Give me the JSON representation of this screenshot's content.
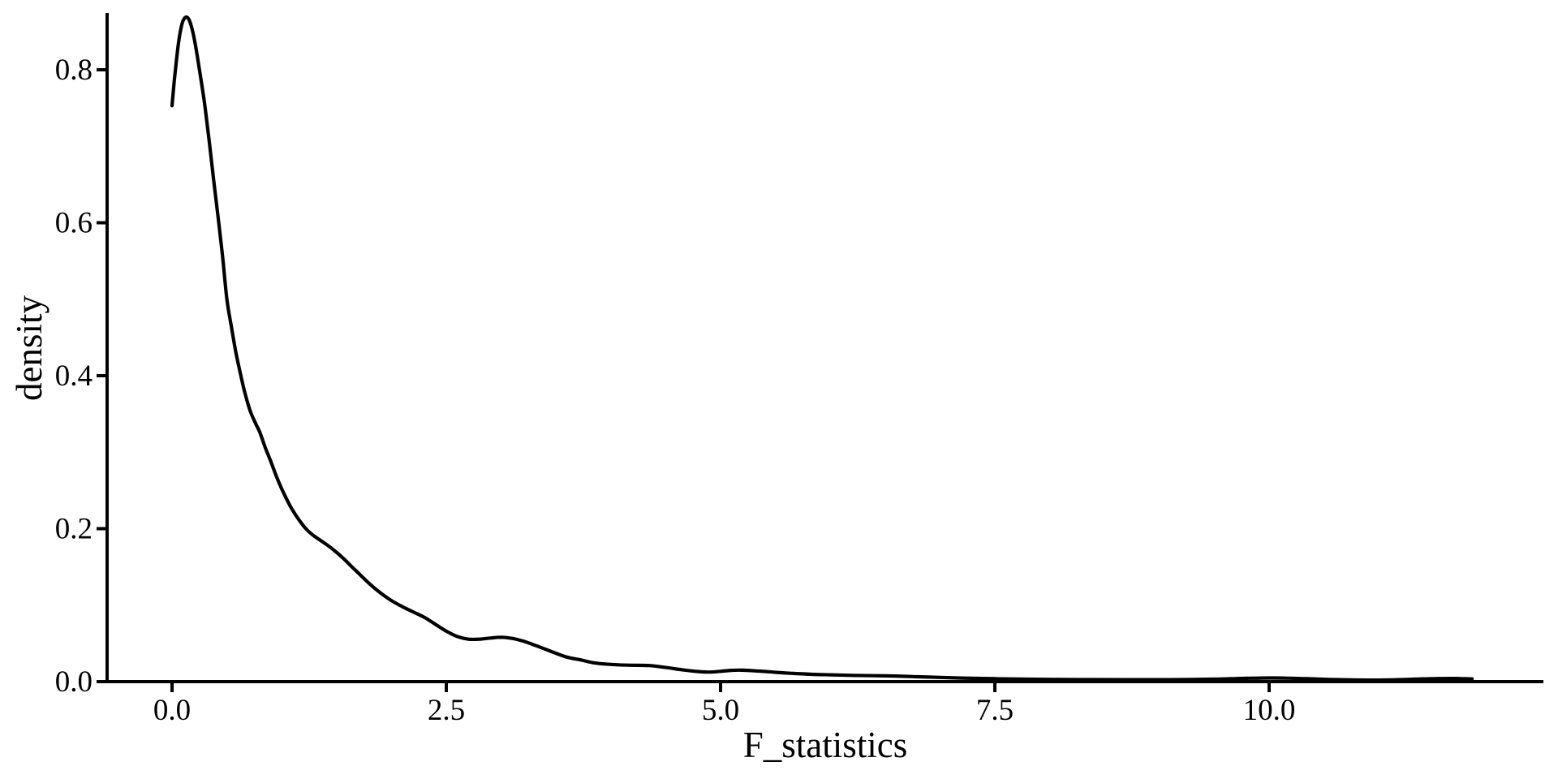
{
  "figure": {
    "background_color": "#ffffff",
    "foreground_color": "#000000"
  },
  "chart_data": {
    "type": "line",
    "subtype": "density-curve",
    "title": "",
    "xlabel": "F_statistics",
    "ylabel": "density",
    "x_ticks": [
      0.0,
      2.5,
      5.0,
      7.5,
      10.0
    ],
    "x_tick_labels": [
      "0.0",
      "2.5",
      "5.0",
      "7.5",
      "10.0"
    ],
    "y_ticks": [
      0.0,
      0.2,
      0.4,
      0.6,
      0.8
    ],
    "y_tick_labels": [
      "0.0",
      "0.2",
      "0.4",
      "0.6",
      "0.8"
    ],
    "xlim": [
      -0.59,
      12.5
    ],
    "ylim": [
      0.0,
      0.875
    ],
    "grid": false,
    "legend": "none",
    "line_color": "#000000",
    "peak": {
      "x": 0.13,
      "density": 0.869
    },
    "series": [
      {
        "points": [
          [
            0.0,
            0.753
          ],
          [
            0.02,
            0.785
          ],
          [
            0.04,
            0.812
          ],
          [
            0.06,
            0.836
          ],
          [
            0.08,
            0.853
          ],
          [
            0.1,
            0.864
          ],
          [
            0.13,
            0.869
          ],
          [
            0.16,
            0.864
          ],
          [
            0.19,
            0.849
          ],
          [
            0.22,
            0.827
          ],
          [
            0.25,
            0.8
          ],
          [
            0.28,
            0.772
          ],
          [
            0.3,
            0.752
          ],
          [
            0.34,
            0.705
          ],
          [
            0.38,
            0.655
          ],
          [
            0.42,
            0.607
          ],
          [
            0.46,
            0.557
          ],
          [
            0.5,
            0.5
          ],
          [
            0.54,
            0.465
          ],
          [
            0.58,
            0.432
          ],
          [
            0.62,
            0.405
          ],
          [
            0.66,
            0.38
          ],
          [
            0.71,
            0.355
          ],
          [
            0.76,
            0.338
          ],
          [
            0.8,
            0.326
          ],
          [
            0.85,
            0.306
          ],
          [
            0.9,
            0.288
          ],
          [
            0.95,
            0.269
          ],
          [
            1.0,
            0.252
          ],
          [
            1.05,
            0.237
          ],
          [
            1.1,
            0.224
          ],
          [
            1.16,
            0.211
          ],
          [
            1.22,
            0.2
          ],
          [
            1.28,
            0.192
          ],
          [
            1.35,
            0.185
          ],
          [
            1.42,
            0.178
          ],
          [
            1.5,
            0.169
          ],
          [
            1.57,
            0.16
          ],
          [
            1.64,
            0.15
          ],
          [
            1.72,
            0.139
          ],
          [
            1.8,
            0.128
          ],
          [
            1.9,
            0.116
          ],
          [
            2.0,
            0.106
          ],
          [
            2.1,
            0.098
          ],
          [
            2.2,
            0.091
          ],
          [
            2.3,
            0.084
          ],
          [
            2.4,
            0.075
          ],
          [
            2.5,
            0.066
          ],
          [
            2.6,
            0.059
          ],
          [
            2.7,
            0.0555
          ],
          [
            2.8,
            0.0555
          ],
          [
            2.9,
            0.057
          ],
          [
            3.0,
            0.058
          ],
          [
            3.1,
            0.0565
          ],
          [
            3.2,
            0.053
          ],
          [
            3.3,
            0.048
          ],
          [
            3.4,
            0.0425
          ],
          [
            3.5,
            0.037
          ],
          [
            3.6,
            0.032
          ],
          [
            3.72,
            0.0285
          ],
          [
            3.85,
            0.0245
          ],
          [
            4.0,
            0.0225
          ],
          [
            4.15,
            0.0215
          ],
          [
            4.35,
            0.021
          ],
          [
            4.5,
            0.0185
          ],
          [
            4.65,
            0.0155
          ],
          [
            4.8,
            0.0132
          ],
          [
            4.9,
            0.0125
          ],
          [
            5.0,
            0.0135
          ],
          [
            5.1,
            0.0147
          ],
          [
            5.2,
            0.015
          ],
          [
            5.35,
            0.0138
          ],
          [
            5.5,
            0.0122
          ],
          [
            5.65,
            0.0108
          ],
          [
            5.83,
            0.0096
          ],
          [
            6.0,
            0.0089
          ],
          [
            6.2,
            0.0082
          ],
          [
            6.4,
            0.0077
          ],
          [
            6.6,
            0.0073
          ],
          [
            6.8,
            0.0064
          ],
          [
            7.0,
            0.0055
          ],
          [
            7.2,
            0.0047
          ],
          [
            7.5,
            0.0038
          ],
          [
            7.8,
            0.0032
          ],
          [
            8.1,
            0.0028
          ],
          [
            8.4,
            0.0026
          ],
          [
            8.7,
            0.0025
          ],
          [
            9.0,
            0.0025
          ],
          [
            9.3,
            0.0028
          ],
          [
            9.55,
            0.0034
          ],
          [
            9.8,
            0.0043
          ],
          [
            10.0,
            0.0048
          ],
          [
            10.15,
            0.0046
          ],
          [
            10.35,
            0.0038
          ],
          [
            10.55,
            0.0028
          ],
          [
            10.75,
            0.0022
          ],
          [
            10.95,
            0.002
          ],
          [
            11.15,
            0.0024
          ],
          [
            11.35,
            0.0033
          ],
          [
            11.55,
            0.004
          ],
          [
            11.7,
            0.0041
          ],
          [
            11.85,
            0.0036
          ]
        ]
      }
    ]
  }
}
